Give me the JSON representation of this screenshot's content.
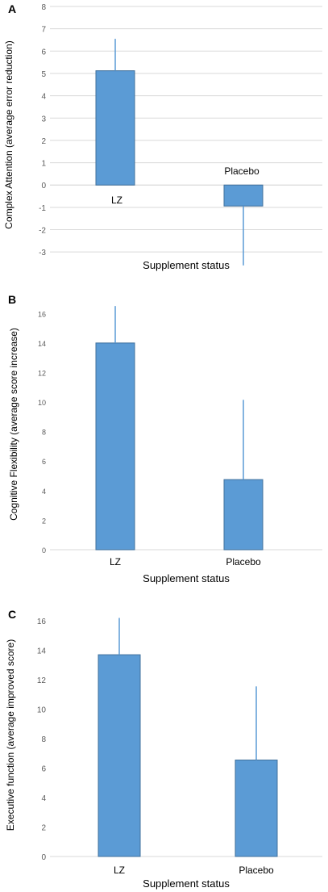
{
  "chart_data": [
    {
      "type": "bar",
      "panel_label": "A",
      "categories": [
        "LZ",
        "Placebo"
      ],
      "values": [
        5.12,
        -0.94
      ],
      "error_bars": [
        1.43,
        2.66
      ],
      "ylabel": "Complex Attention (average error reduction)",
      "xlabel": "Supplement status",
      "ylim": [
        -3.5,
        8
      ],
      "yticks": [
        -3,
        -2,
        -1,
        0,
        1,
        2,
        3,
        4,
        5,
        6,
        7,
        8
      ],
      "grid": true,
      "legend": "none",
      "bar_color": "#5b9bd5",
      "category_labels_near_bars": true
    },
    {
      "type": "bar",
      "panel_label": "B",
      "categories": [
        "LZ",
        "Placebo"
      ],
      "values": [
        14.0,
        4.75
      ],
      "error_bars": [
        2.5,
        5.4
      ],
      "ylabel": "Cognitive Flexibility (average score increase)",
      "xlabel": "Supplement status",
      "ylim": [
        0,
        17
      ],
      "yticks": [
        0,
        2,
        4,
        6,
        8,
        10,
        12,
        14,
        16
      ],
      "grid": false,
      "legend": "none",
      "bar_color": "#5b9bd5",
      "category_labels_near_bars": false
    },
    {
      "type": "bar",
      "panel_label": "C",
      "categories": [
        "LZ",
        "Placebo"
      ],
      "values": [
        13.7,
        6.55
      ],
      "error_bars": [
        2.5,
        5.0
      ],
      "ylabel": "Executive function (average improved score)",
      "xlabel": "Supplement status",
      "ylim": [
        0,
        16.5
      ],
      "yticks": [
        0,
        2,
        4,
        6,
        8,
        10,
        12,
        14,
        16
      ],
      "grid": false,
      "legend": "none",
      "bar_color": "#5b9bd5",
      "category_labels_near_bars": false
    }
  ]
}
